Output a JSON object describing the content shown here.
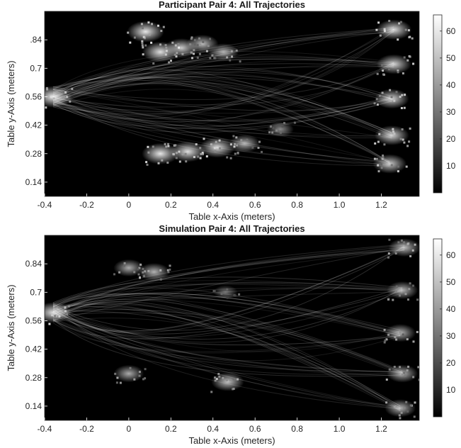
{
  "chart_data": [
    {
      "type": "heatmap",
      "title": "Participant Pair 4: All Trajectories",
      "xlabel": "Table x-Axis (meters)",
      "ylabel": "Table y-Axis (meters)",
      "xlim": [
        -0.4,
        1.38
      ],
      "ylim": [
        0.07,
        0.98
      ],
      "x_ticks": [
        -0.4,
        -0.2,
        0,
        0.2,
        0.4,
        0.6,
        0.8,
        1.0,
        1.2
      ],
      "x_tick_labels": [
        "-0.4",
        "-0.2",
        "0",
        "0.2",
        "0.4",
        "0.6",
        "0.8",
        "1.0",
        "1.2"
      ],
      "y_ticks": [
        0.14,
        0.28,
        0.42,
        0.56,
        0.7,
        0.84
      ],
      "y_tick_labels": [
        "0.14",
        "0.28",
        "0.42",
        "0.56",
        "0.7",
        ".84"
      ],
      "colorbar": {
        "min": 0,
        "max": 66,
        "ticks": [
          10,
          20,
          30,
          40,
          50,
          60
        ],
        "tick_labels": [
          "10",
          "20",
          "30",
          "40",
          "50",
          "60"
        ],
        "colormap": "gray"
      },
      "hotspots": [
        {
          "x": -0.36,
          "y": 0.56,
          "value": 62
        },
        {
          "x": 0.08,
          "y": 0.88,
          "value": 60
        },
        {
          "x": 0.15,
          "y": 0.78,
          "value": 58
        },
        {
          "x": 0.25,
          "y": 0.8,
          "value": 52
        },
        {
          "x": 0.35,
          "y": 0.82,
          "value": 48
        },
        {
          "x": 0.45,
          "y": 0.78,
          "value": 44
        },
        {
          "x": 0.15,
          "y": 0.28,
          "value": 60
        },
        {
          "x": 0.28,
          "y": 0.29,
          "value": 58
        },
        {
          "x": 0.42,
          "y": 0.31,
          "value": 56
        },
        {
          "x": 0.55,
          "y": 0.33,
          "value": 46
        },
        {
          "x": 0.72,
          "y": 0.4,
          "value": 36
        },
        {
          "x": 1.26,
          "y": 0.89,
          "value": 56
        },
        {
          "x": 1.26,
          "y": 0.72,
          "value": 54
        },
        {
          "x": 1.25,
          "y": 0.55,
          "value": 54
        },
        {
          "x": 1.25,
          "y": 0.37,
          "value": 54
        },
        {
          "x": 1.24,
          "y": 0.23,
          "value": 52
        }
      ]
    },
    {
      "type": "heatmap",
      "title": "Simulation Pair 4: All Trajectories",
      "xlabel": "Table x-Axis (meters)",
      "ylabel": "Table y-Axis (meters)",
      "xlim": [
        -0.4,
        1.38
      ],
      "ylim": [
        0.07,
        0.98
      ],
      "x_ticks": [
        -0.4,
        -0.2,
        0,
        0.2,
        0.4,
        0.6,
        0.8,
        1.0,
        1.2
      ],
      "x_tick_labels": [
        "-0.4",
        "-0.2",
        "0",
        "0.2",
        "0.4",
        "0.6",
        "0.8",
        "1.0",
        "1.2"
      ],
      "y_ticks": [
        0.14,
        0.28,
        0.42,
        0.56,
        0.7,
        0.84
      ],
      "y_tick_labels": [
        "0.14",
        "0.28",
        "0.42",
        "0.56",
        "0.7",
        "0.84"
      ],
      "colorbar": {
        "min": 0,
        "max": 66,
        "ticks": [
          10,
          20,
          30,
          40,
          50,
          60
        ],
        "tick_labels": [
          "10",
          "20",
          "30",
          "40",
          "50",
          "60"
        ],
        "colormap": "gray"
      },
      "hotspots": [
        {
          "x": -0.36,
          "y": 0.6,
          "value": 58
        },
        {
          "x": 0.0,
          "y": 0.82,
          "value": 44
        },
        {
          "x": 0.12,
          "y": 0.8,
          "value": 46
        },
        {
          "x": 0.0,
          "y": 0.3,
          "value": 44
        },
        {
          "x": 0.47,
          "y": 0.26,
          "value": 50
        },
        {
          "x": 0.46,
          "y": 0.7,
          "value": 30
        },
        {
          "x": 1.31,
          "y": 0.92,
          "value": 48
        },
        {
          "x": 1.3,
          "y": 0.71,
          "value": 46
        },
        {
          "x": 1.29,
          "y": 0.5,
          "value": 46
        },
        {
          "x": 1.3,
          "y": 0.3,
          "value": 46
        },
        {
          "x": 1.29,
          "y": 0.13,
          "value": 46
        }
      ]
    }
  ]
}
